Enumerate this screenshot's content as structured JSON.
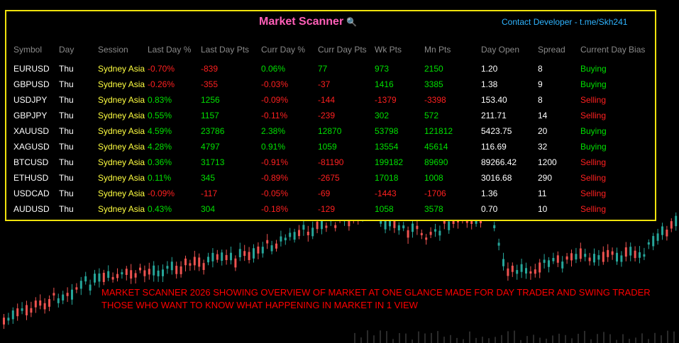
{
  "app": {
    "title": "Market Scanner",
    "contact": "Contact Developer - t.me/Skh241"
  },
  "colors": {
    "green": "#00e000",
    "red": "#ff2020",
    "yellow": "#ffff40",
    "white": "#ffffff",
    "header": "#8a8a8a",
    "border": "#f0e20c",
    "title": "#ff5fb8",
    "contact": "#2fb4ff",
    "candle_up": "#26a69a",
    "candle_down": "#ef5350"
  },
  "table": {
    "columns": [
      "Symbol",
      "Day",
      "Session",
      "Last Day %",
      "Last Day Pts",
      "Curr Day %",
      "Curr Day Pts",
      "Wk Pts",
      "Mn Pts",
      "Day Open",
      "Spread",
      "Current Day Bias"
    ],
    "rows": [
      {
        "symbol": "EURUSD",
        "day": "Thu",
        "session": "Sydney Asia",
        "last_pct": "-0.70%",
        "last_pts": "-839",
        "curr_pct": "0.06%",
        "curr_pts": "77",
        "wk_pts": "973",
        "mn_pts": "2150",
        "day_open": "1.20",
        "spread": "8",
        "bias": "Buying"
      },
      {
        "symbol": "GBPUSD",
        "day": "Thu",
        "session": "Sydney Asia",
        "last_pct": "-0.26%",
        "last_pts": "-355",
        "curr_pct": "-0.03%",
        "curr_pts": "-37",
        "wk_pts": "1416",
        "mn_pts": "3385",
        "day_open": "1.38",
        "spread": "9",
        "bias": "Buying"
      },
      {
        "symbol": "USDJPY",
        "day": "Thu",
        "session": "Sydney Asia",
        "last_pct": "0.83%",
        "last_pts": "1256",
        "curr_pct": "-0.09%",
        "curr_pts": "-144",
        "wk_pts": "-1379",
        "mn_pts": "-3398",
        "day_open": "153.40",
        "spread": "8",
        "bias": "Selling"
      },
      {
        "symbol": "GBPJPY",
        "day": "Thu",
        "session": "Sydney Asia",
        "last_pct": "0.55%",
        "last_pts": "1157",
        "curr_pct": "-0.11%",
        "curr_pts": "-239",
        "wk_pts": "302",
        "mn_pts": "572",
        "day_open": "211.71",
        "spread": "14",
        "bias": "Selling"
      },
      {
        "symbol": "XAUUSD",
        "day": "Thu",
        "session": "Sydney Asia",
        "last_pct": "4.59%",
        "last_pts": "23786",
        "curr_pct": "2.38%",
        "curr_pts": "12870",
        "wk_pts": "53798",
        "mn_pts": "121812",
        "day_open": "5423.75",
        "spread": "20",
        "bias": "Buying"
      },
      {
        "symbol": "XAGUSD",
        "day": "Thu",
        "session": "Sydney Asia",
        "last_pct": "4.28%",
        "last_pts": "4797",
        "curr_pct": "0.91%",
        "curr_pts": "1059",
        "wk_pts": "13554",
        "mn_pts": "45614",
        "day_open": "116.69",
        "spread": "32",
        "bias": "Buying"
      },
      {
        "symbol": "BTCUSD",
        "day": "Thu",
        "session": "Sydney Asia",
        "last_pct": "0.36%",
        "last_pts": "31713",
        "curr_pct": "-0.91%",
        "curr_pts": "-81190",
        "wk_pts": "199182",
        "mn_pts": "89690",
        "day_open": "89266.42",
        "spread": "1200",
        "bias": "Selling"
      },
      {
        "symbol": "ETHUSD",
        "day": "Thu",
        "session": "Sydney Asia",
        "last_pct": "0.11%",
        "last_pts": "345",
        "curr_pct": "-0.89%",
        "curr_pts": "-2675",
        "wk_pts": "17018",
        "mn_pts": "1008",
        "day_open": "3016.68",
        "spread": "290",
        "bias": "Selling"
      },
      {
        "symbol": "USDCAD",
        "day": "Thu",
        "session": "Sydney Asia",
        "last_pct": "-0.09%",
        "last_pts": "-117",
        "curr_pct": "-0.05%",
        "curr_pts": "-69",
        "wk_pts": "-1443",
        "mn_pts": "-1706",
        "day_open": "1.36",
        "spread": "11",
        "bias": "Selling"
      },
      {
        "symbol": "AUDUSD",
        "day": "Thu",
        "session": "Sydney Asia",
        "last_pct": "0.43%",
        "last_pts": "304",
        "curr_pct": "-0.18%",
        "curr_pts": "-129",
        "wk_pts": "1058",
        "mn_pts": "3578",
        "day_open": "0.70",
        "spread": "10",
        "bias": "Selling"
      }
    ]
  },
  "promo": {
    "line1": "MARKET SCANNER 2026 SHOWING OVERVIEW OF MARKET AT ONE GLANCE MADE FOR DAY TRADER AND SWING TRADER",
    "line2": "THOSE WHO WANT TO KNOW WHAT HAPPENING IN MARKET IN  1 VIEW"
  }
}
